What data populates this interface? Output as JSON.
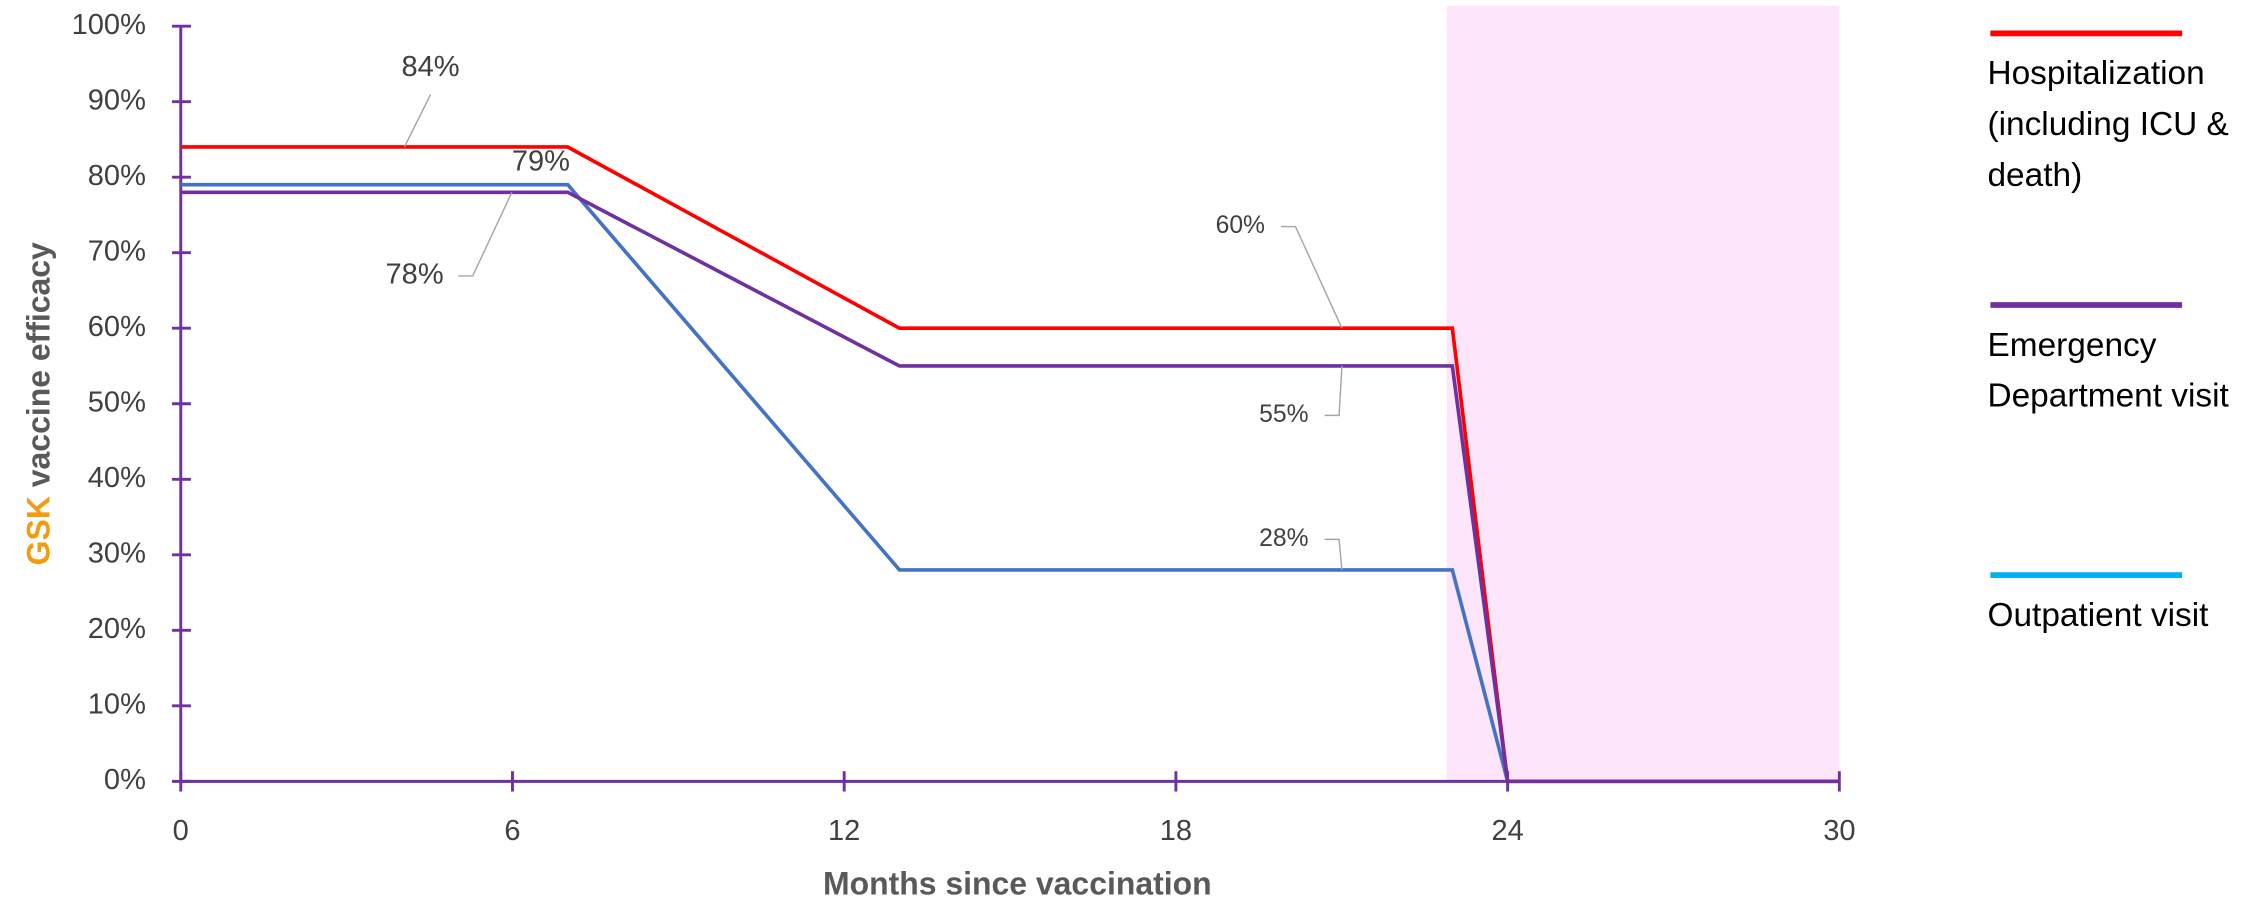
{
  "chart_data": {
    "type": "line",
    "ylabel_brand": "GSK",
    "ylabel": "vaccine efficacy",
    "xlabel": "Months since vaccination",
    "shaded_region": [
      22.9,
      30
    ],
    "shaded_color": "#fde6fb",
    "axis_color": "#7030a0",
    "xlim": [
      0,
      30
    ],
    "xticks": [
      0,
      6,
      12,
      18,
      24,
      30
    ],
    "ylim": [
      0,
      100
    ],
    "yticks": [
      {
        "value": 0,
        "label": "0%"
      },
      {
        "value": 10,
        "label": "10%"
      },
      {
        "value": 20,
        "label": "20%"
      },
      {
        "value": 30,
        "label": "30%"
      },
      {
        "value": 40,
        "label": "40%"
      },
      {
        "value": 50,
        "label": "50%"
      },
      {
        "value": 60,
        "label": "60%"
      },
      {
        "value": 70,
        "label": "70%"
      },
      {
        "value": 80,
        "label": "80%"
      },
      {
        "value": 90,
        "label": "90%"
      },
      {
        "value": 100,
        "label": "100%"
      }
    ],
    "series": [
      {
        "name": "Hospitalization (including ICU & death)",
        "color": "#ff0000",
        "x": [
          0,
          7,
          13,
          23,
          24,
          30
        ],
        "values": [
          84,
          84,
          60,
          60,
          0,
          0
        ],
        "value_labels": [
          "84%",
          null,
          null,
          "60%",
          null,
          null
        ]
      },
      {
        "name": "Emergency Department visit",
        "color": "#7030a0",
        "x": [
          0,
          7,
          13,
          23,
          24,
          30
        ],
        "values": [
          78,
          78,
          55,
          55,
          0,
          0
        ],
        "value_labels": [
          "78%",
          null,
          null,
          "55%",
          null,
          null
        ]
      },
      {
        "name": "Outpatient visit",
        "color": "#4472c4",
        "x": [
          0,
          7,
          13,
          23,
          24
        ],
        "values": [
          79,
          79,
          28,
          28,
          0
        ],
        "value_labels": [
          null,
          "79%",
          null,
          "28%",
          null
        ]
      }
    ]
  }
}
